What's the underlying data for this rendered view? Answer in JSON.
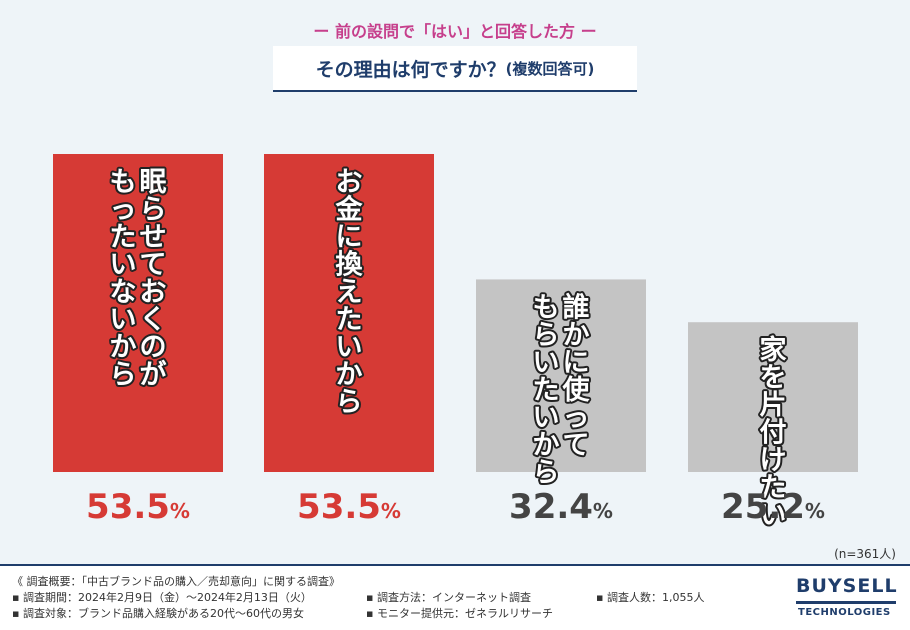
{
  "header": {
    "subtitle": "ー 前の設問で「はい」と回答した方 ー",
    "title": "その理由は何ですか？",
    "title_note": "(複数回答可)"
  },
  "chart_data": {
    "type": "bar",
    "categories": [
      "眠らせておくのがもったいないから",
      "お金に換えたいから",
      "誰かに使ってもらいたいから",
      "家を片付けたい"
    ],
    "label_lines": [
      [
        "眠らせておくのが",
        "もったいないから"
      ],
      [
        "お金に換えたいから"
      ],
      [
        "誰かに使って",
        "もらいたいから"
      ],
      [
        "家を片付けたい"
      ]
    ],
    "values": [
      53.5,
      53.5,
      32.4,
      25.2
    ],
    "value_labels": [
      {
        "num": "53.5",
        "unit": "%"
      },
      {
        "num": "53.5",
        "unit": "%"
      },
      {
        "num": "32.4",
        "unit": "%"
      },
      {
        "num": "25.2",
        "unit": "%"
      }
    ],
    "colors": [
      "#d63a35",
      "#d63a35",
      "#c4c4c4",
      "#c4c4c4"
    ],
    "value_colors": [
      "#d63a35",
      "#d63a35",
      "#444444",
      "#444444"
    ],
    "ylim": [
      0,
      60
    ],
    "grid": false,
    "xlabel": "",
    "ylabel": ""
  },
  "sample_size": "(n=361人)",
  "footer": {
    "overview": "《 調査概要：「中古ブランド品の購入／売却意向」に関する調査》",
    "period": "▪ 調査期間：2024年2月9日（金）〜2024年2月13日（火）",
    "target": "▪ 調査対象：ブランド品購入経験がある20代〜60代の男女",
    "method": "▪ 調査方法：インターネット調査",
    "provider": "▪ モニター提供元：ゼネラルリサーチ",
    "count": "▪ 調査人数：1,055人"
  },
  "logo": {
    "main": "BUYSELL",
    "sub": "TECHNOLOGIES"
  }
}
